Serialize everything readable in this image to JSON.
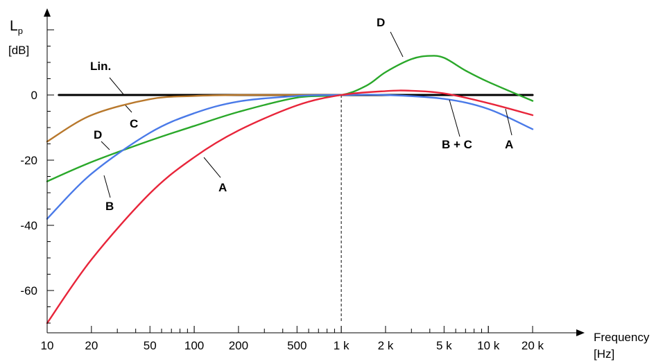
{
  "chart_data": {
    "type": "line",
    "y_axis_title": "L",
    "y_axis_title_sub": "p",
    "y_axis_unit": "[dB]",
    "x_axis_title": "Frequency",
    "x_axis_unit": "[Hz]",
    "x_scale": "log",
    "xlim": [
      10,
      20000
    ],
    "ylim": [
      -70,
      22
    ],
    "x_ticks": [
      {
        "value": 10,
        "label": "10"
      },
      {
        "value": 20,
        "label": "20"
      },
      {
        "value": 50,
        "label": "50"
      },
      {
        "value": 100,
        "label": "100"
      },
      {
        "value": 200,
        "label": "200"
      },
      {
        "value": 500,
        "label": "500"
      },
      {
        "value": 1000,
        "label": "1 k"
      },
      {
        "value": 2000,
        "label": "2 k"
      },
      {
        "value": 5000,
        "label": "5 k"
      },
      {
        "value": 10000,
        "label": "10 k"
      },
      {
        "value": 20000,
        "label": "20 k"
      }
    ],
    "y_ticks": [
      {
        "value": 0,
        "label": "0"
      },
      {
        "value": -20,
        "label": "-20"
      },
      {
        "value": -40,
        "label": "-40"
      },
      {
        "value": -60,
        "label": "-60"
      }
    ],
    "reference_line": {
      "x": 1000,
      "style": "dashed"
    },
    "series": [
      {
        "name": "Lin.",
        "color": "#000000",
        "x": [
          12,
          20000
        ],
        "y": [
          0,
          0
        ]
      },
      {
        "name": "A",
        "color": "#e8253a",
        "x": [
          10,
          20,
          50,
          100,
          200,
          500,
          1000,
          2000,
          3000,
          5000,
          10000,
          20000
        ],
        "y": [
          -70,
          -50.5,
          -30.2,
          -19.1,
          -10.9,
          -3.2,
          0,
          1.2,
          1.3,
          0.5,
          -2.5,
          -6.2
        ]
      },
      {
        "name": "B",
        "color": "#4a7ae8",
        "x": [
          10,
          20,
          50,
          100,
          200,
          500,
          1000,
          2000,
          5000,
          10000,
          20000
        ],
        "y": [
          -38,
          -24.2,
          -11.6,
          -5.6,
          -2.0,
          -0.3,
          0,
          0,
          -1.2,
          -4.3,
          -10.5
        ]
      },
      {
        "name": "C",
        "color": "#b8782c",
        "x": [
          10,
          20,
          50,
          100,
          200,
          500,
          1000
        ],
        "y": [
          -14.3,
          -6.2,
          -1.3,
          -0.3,
          0,
          0,
          0
        ]
      },
      {
        "name": "D",
        "color": "#2aa82a",
        "x": [
          10,
          20,
          50,
          100,
          200,
          500,
          1000,
          1500,
          2000,
          3000,
          4000,
          5000,
          7000,
          10000,
          20000
        ],
        "y": [
          -26.5,
          -20.6,
          -14.0,
          -9.5,
          -5.2,
          -0.8,
          0,
          3.0,
          7.0,
          11.0,
          12.0,
          11.4,
          7.5,
          4.0,
          -1.8
        ]
      }
    ],
    "labels": [
      "Lin.",
      "C",
      "D",
      "B",
      "A",
      "D",
      "B + C",
      "A"
    ]
  }
}
